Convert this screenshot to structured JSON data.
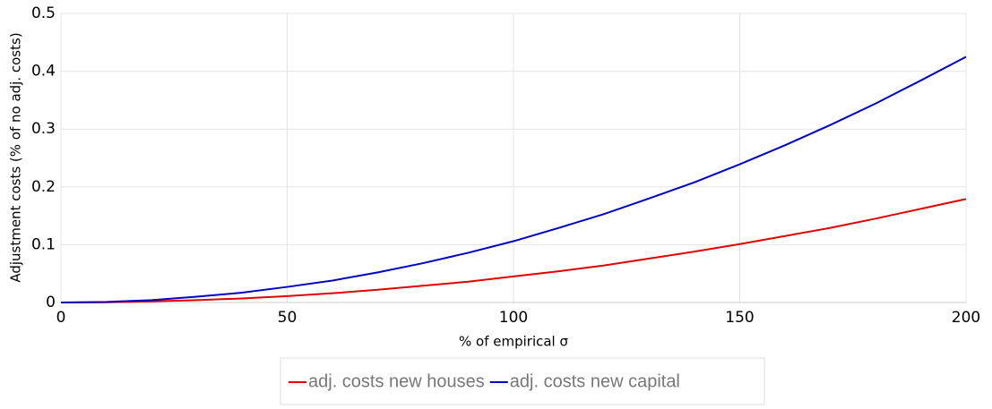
{
  "chart_data": {
    "type": "line",
    "x_label": "% of empirical σ",
    "y_label": "Adjustment costs (% of no adj. costs)",
    "x": [
      0,
      10,
      20,
      30,
      40,
      50,
      60,
      70,
      80,
      90,
      100,
      110,
      120,
      130,
      140,
      150,
      160,
      170,
      180,
      190,
      200
    ],
    "series": [
      {
        "name": "adj. costs new houses",
        "color": "#e00000",
        "values": [
          0,
          0.0004,
          0.002,
          0.004,
          0.007,
          0.011,
          0.016,
          0.022,
          0.029,
          0.036,
          0.045,
          0.054,
          0.064,
          0.076,
          0.088,
          0.101,
          0.115,
          0.129,
          0.145,
          0.162,
          0.179
        ]
      },
      {
        "name": "adj. costs new capital",
        "color": "#0000c0",
        "values": [
          0,
          0.001,
          0.004,
          0.01,
          0.017,
          0.027,
          0.038,
          0.052,
          0.068,
          0.086,
          0.106,
          0.129,
          0.153,
          0.18,
          0.208,
          0.239,
          0.272,
          0.307,
          0.344,
          0.384,
          0.425
        ]
      }
    ],
    "xlim": [
      0,
      200
    ],
    "xticks": [
      0,
      50,
      100,
      150,
      200
    ],
    "ylim": [
      0,
      0.5
    ],
    "yticks": [
      0,
      0.1,
      0.2,
      0.3,
      0.4,
      0.5
    ],
    "grid": true,
    "legend": "bottom"
  }
}
